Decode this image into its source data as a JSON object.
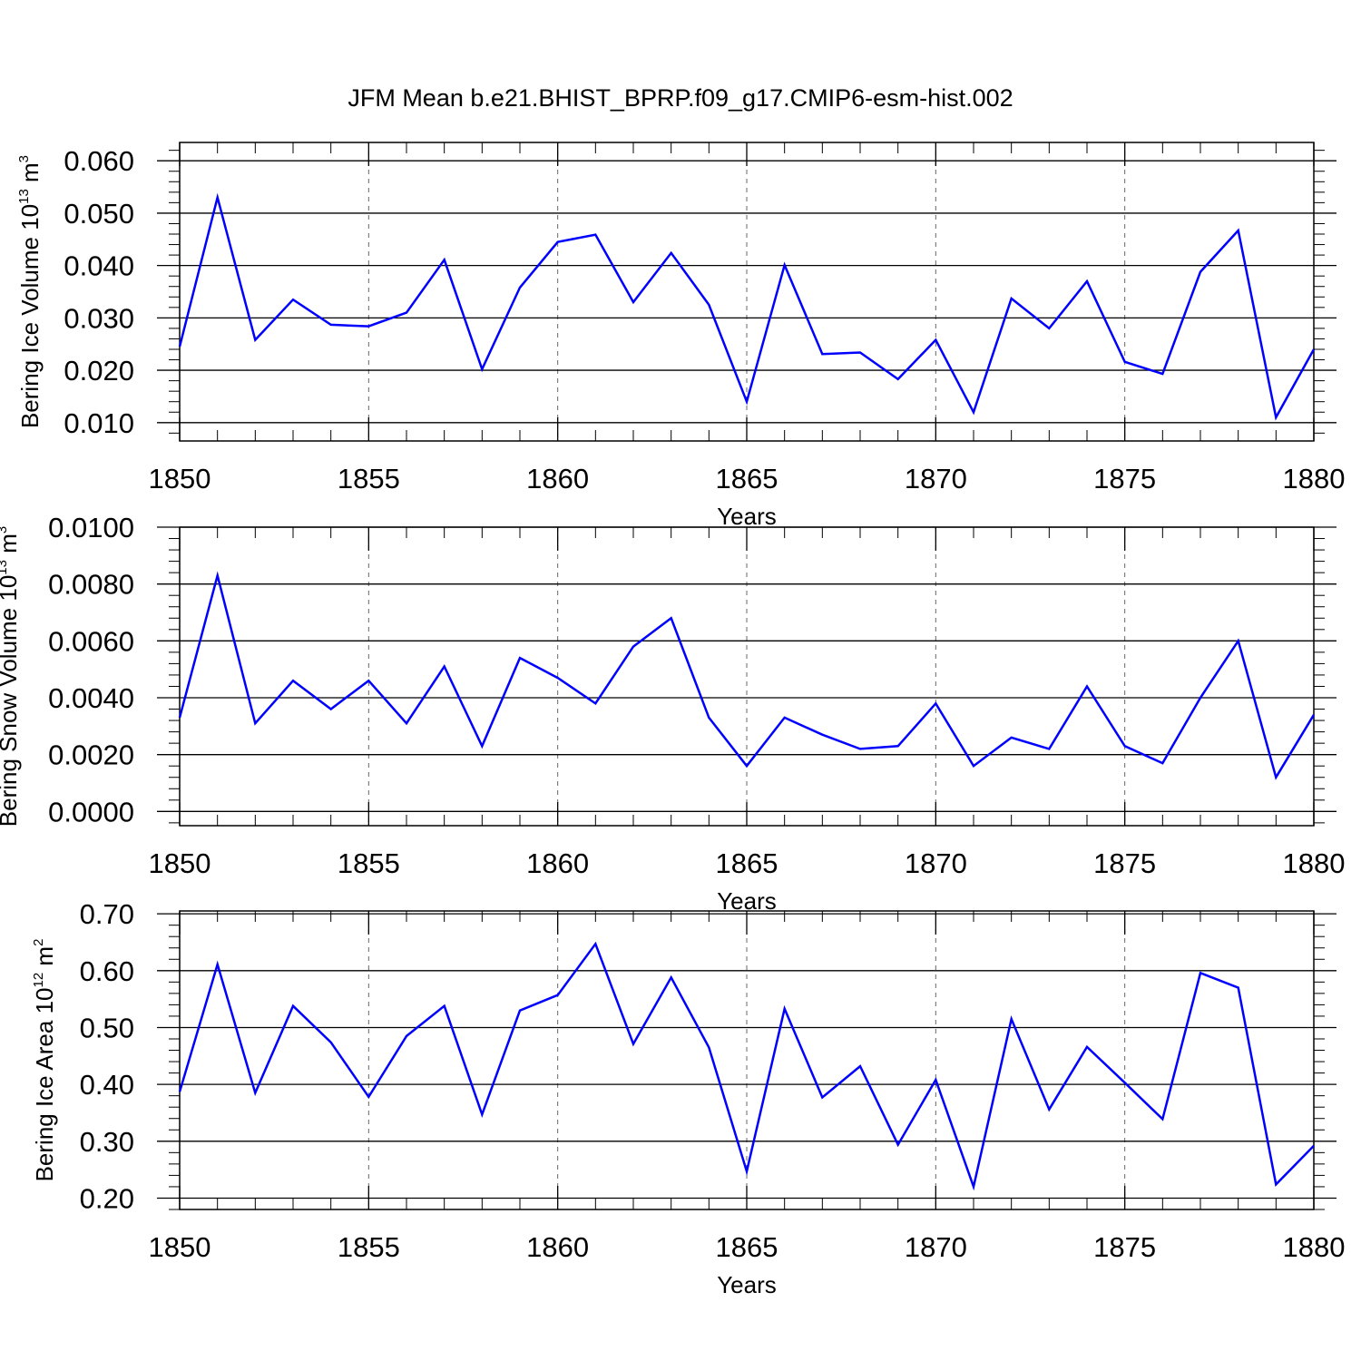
{
  "title": "JFM Mean b.e21.BHIST_BPRP.f09_g17.CMIP6-esm-hist.002",
  "line_color": "#0000ff",
  "chart_data": [
    {
      "type": "line",
      "title": "JFM Mean b.e21.BHIST_BPRP.f09_g17.CMIP6-esm-hist.002",
      "xlabel": "Years",
      "ylabel": "Bering Ice Volume 10^13 m^3",
      "ylabel_parts": {
        "main": "Bering Ice Volume 10",
        "exp": "13",
        "unit": " m",
        "unit_exp": "3"
      },
      "xlim": [
        1850,
        1880
      ],
      "ylim": [
        0.0065,
        0.0635
      ],
      "xticks": [
        1850,
        1855,
        1860,
        1865,
        1870,
        1875,
        1880
      ],
      "yticks": [
        0.01,
        0.02,
        0.03,
        0.04,
        0.05,
        0.06
      ],
      "ytick_labels": [
        "0.010",
        "0.020",
        "0.030",
        "0.040",
        "0.050",
        "0.060"
      ],
      "grid": "vertical dashed at major x ticks",
      "x": [
        1850,
        1851,
        1852,
        1853,
        1854,
        1855,
        1856,
        1857,
        1858,
        1859,
        1860,
        1861,
        1862,
        1863,
        1864,
        1865,
        1866,
        1867,
        1868,
        1869,
        1870,
        1871,
        1872,
        1873,
        1874,
        1875,
        1876,
        1877,
        1878,
        1879,
        1880
      ],
      "series": [
        {
          "values": [
            0.0245,
            0.053,
            0.0258,
            0.0335,
            0.0287,
            0.0284,
            0.031,
            0.0411,
            0.0202,
            0.0358,
            0.0445,
            0.0459,
            0.033,
            0.0424,
            0.0325,
            0.014,
            0.0401,
            0.0231,
            0.0234,
            0.0183,
            0.0258,
            0.012,
            0.0337,
            0.028,
            0.037,
            0.0216,
            0.0193,
            0.0388,
            0.0467,
            0.011,
            0.024
          ]
        }
      ]
    },
    {
      "type": "line",
      "xlabel": "Years",
      "ylabel": "Bering Snow Volume 10^13 m^3",
      "ylabel_parts": {
        "main": "Bering Snow Volume 10",
        "exp": "13",
        "unit": " m",
        "unit_exp": "3"
      },
      "xlim": [
        1850,
        1880
      ],
      "ylim": [
        -0.0005,
        0.01
      ],
      "xticks": [
        1850,
        1855,
        1860,
        1865,
        1870,
        1875,
        1880
      ],
      "yticks": [
        0.0,
        0.002,
        0.004,
        0.006,
        0.008,
        0.01
      ],
      "ytick_labels": [
        "0.0000",
        "0.0020",
        "0.0040",
        "0.0060",
        "0.0080",
        "0.0100"
      ],
      "grid": "vertical dashed at major x ticks",
      "x": [
        1850,
        1851,
        1852,
        1853,
        1854,
        1855,
        1856,
        1857,
        1858,
        1859,
        1860,
        1861,
        1862,
        1863,
        1864,
        1865,
        1866,
        1867,
        1868,
        1869,
        1870,
        1871,
        1872,
        1873,
        1874,
        1875,
        1876,
        1877,
        1878,
        1879,
        1880
      ],
      "series": [
        {
          "values": [
            0.0033,
            0.0083,
            0.0031,
            0.0046,
            0.0036,
            0.0046,
            0.0031,
            0.0051,
            0.0023,
            0.0054,
            0.0047,
            0.0038,
            0.0058,
            0.0068,
            0.0033,
            0.0016,
            0.0033,
            0.0027,
            0.0022,
            0.0023,
            0.0038,
            0.0016,
            0.0026,
            0.0022,
            0.0044,
            0.0023,
            0.0017,
            0.004,
            0.006,
            0.0012,
            0.0034
          ]
        }
      ]
    },
    {
      "type": "line",
      "xlabel": "Years",
      "ylabel": "Bering Ice Area 10^12 m^2",
      "ylabel_parts": {
        "main": "Bering Ice Area 10",
        "exp": "12",
        "unit": " m",
        "unit_exp": "2"
      },
      "xlim": [
        1850,
        1880
      ],
      "ylim": [
        0.18,
        0.705
      ],
      "xticks": [
        1850,
        1855,
        1860,
        1865,
        1870,
        1875,
        1880
      ],
      "yticks": [
        0.2,
        0.3,
        0.4,
        0.5,
        0.6,
        0.7
      ],
      "ytick_labels": [
        "0.20",
        "0.30",
        "0.40",
        "0.50",
        "0.60",
        "0.70"
      ],
      "grid": "vertical dashed at major x ticks",
      "x": [
        1850,
        1851,
        1852,
        1853,
        1854,
        1855,
        1856,
        1857,
        1858,
        1859,
        1860,
        1861,
        1862,
        1863,
        1864,
        1865,
        1866,
        1867,
        1868,
        1869,
        1870,
        1871,
        1872,
        1873,
        1874,
        1875,
        1876,
        1877,
        1878,
        1879,
        1880
      ],
      "series": [
        {
          "values": [
            0.387,
            0.611,
            0.385,
            0.538,
            0.474,
            0.378,
            0.485,
            0.538,
            0.347,
            0.53,
            0.557,
            0.647,
            0.471,
            0.588,
            0.465,
            0.247,
            0.533,
            0.377,
            0.432,
            0.294,
            0.408,
            0.22,
            0.515,
            0.356,
            0.466,
            0.403,
            0.339,
            0.596,
            0.57,
            0.224,
            0.292
          ]
        }
      ]
    }
  ]
}
